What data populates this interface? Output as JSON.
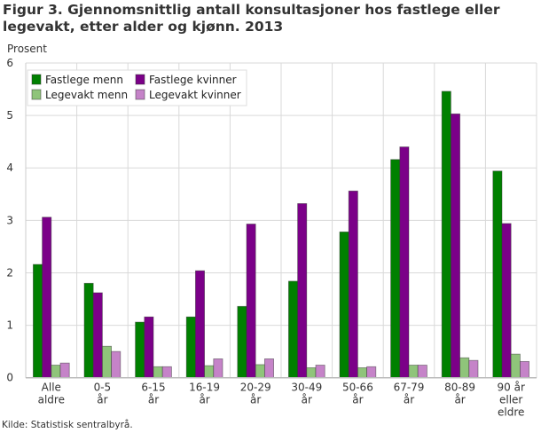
{
  "chart_data": {
    "type": "bar",
    "title": "Figur 3. Gjennomsnittlig antall konsultasjoner hos fastlege eller legevakt, etter alder og kjønn. 2013",
    "ylabel": "Prosent",
    "xlabel": "",
    "ylim": [
      0,
      6
    ],
    "yticks": [
      0,
      1,
      2,
      3,
      4,
      5,
      6
    ],
    "grid": true,
    "legend_placement": "top-left",
    "categories": [
      [
        "Alle",
        "aldre"
      ],
      [
        "0-5",
        "år"
      ],
      [
        "6-15",
        "år"
      ],
      [
        "16-19",
        "år"
      ],
      [
        "20-29",
        "år"
      ],
      [
        "30-49",
        "år"
      ],
      [
        "50-66",
        "år"
      ],
      [
        "67-79",
        "år"
      ],
      [
        "80-89",
        "år"
      ],
      [
        "90 år",
        "eller",
        "eldre"
      ]
    ],
    "series": [
      {
        "name": "Fastlege menn",
        "color": "#008000",
        "values": [
          2.16,
          1.8,
          1.06,
          1.16,
          1.36,
          1.84,
          2.78,
          4.16,
          5.46,
          3.94
        ]
      },
      {
        "name": "Fastlege kvinner",
        "color": "#7b0088",
        "values": [
          3.06,
          1.62,
          1.16,
          2.04,
          2.93,
          3.32,
          3.56,
          4.4,
          5.03,
          2.94
        ]
      },
      {
        "name": "Legevakt menn",
        "color": "#8fc47a",
        "values": [
          0.24,
          0.6,
          0.21,
          0.23,
          0.25,
          0.19,
          0.19,
          0.24,
          0.38,
          0.45
        ]
      },
      {
        "name": "Legevakt kvinner",
        "color": "#c583c8",
        "values": [
          0.28,
          0.5,
          0.21,
          0.36,
          0.36,
          0.24,
          0.21,
          0.24,
          0.33,
          0.31
        ]
      }
    ],
    "source": "Kilde: Statistisk sentralbyrå."
  }
}
